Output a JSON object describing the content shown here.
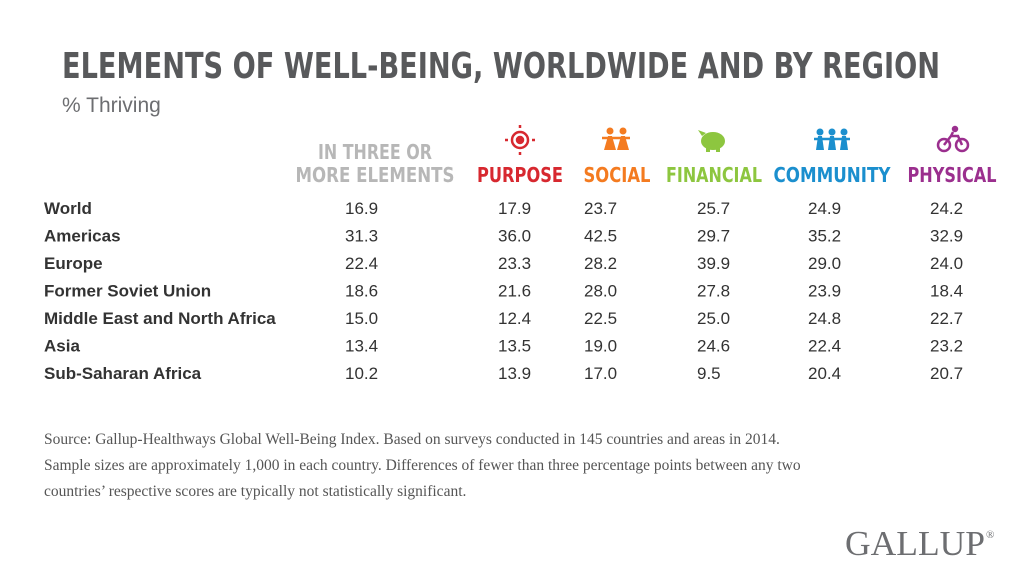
{
  "header": {
    "title": "ELEMENTS OF WELL-BEING, WORLDWIDE AND BY REGION",
    "subtitle": "% Thriving"
  },
  "table": {
    "columns": [
      {
        "lines": [
          "IN THREE OR",
          "MORE ELEMENTS"
        ],
        "color": "#b7b7b7"
      },
      {
        "lines": [
          "PURPOSE"
        ],
        "color": "#d7282f"
      },
      {
        "lines": [
          "SOCIAL"
        ],
        "color": "#f47b20"
      },
      {
        "lines": [
          "FINANCIAL"
        ],
        "color": "#8dc63f"
      },
      {
        "lines": [
          "COMMUNITY"
        ],
        "color": "#1b8fce"
      },
      {
        "lines": [
          "PHYSICAL"
        ],
        "color": "#9b2f8e"
      }
    ],
    "rows": [
      {
        "label": "World",
        "cells": [
          "16.9",
          "17.9",
          "23.7",
          "25.7",
          "24.9",
          "24.2"
        ]
      },
      {
        "label": "Americas",
        "cells": [
          "31.3",
          "36.0",
          "42.5",
          "29.7",
          "35.2",
          "32.9"
        ]
      },
      {
        "label": "Europe",
        "cells": [
          "22.4",
          "23.3",
          "28.2",
          "39.9",
          "29.0",
          "24.0"
        ]
      },
      {
        "label": "Former Soviet Union",
        "cells": [
          "18.6",
          "21.6",
          "28.0",
          "27.8",
          "23.9",
          "18.4"
        ]
      },
      {
        "label": "Middle East and North Africa",
        "cells": [
          "15.0",
          "12.4",
          "22.5",
          "25.0",
          "24.8",
          "22.7"
        ]
      },
      {
        "label": "Asia",
        "cells": [
          "13.4",
          "13.5",
          "19.0",
          "24.6",
          "22.4",
          "23.2"
        ]
      },
      {
        "label": "Sub-Saharan Africa",
        "cells": [
          "10.2",
          "13.9",
          "17.0",
          "9.5",
          "20.4",
          "20.7"
        ]
      }
    ]
  },
  "source": {
    "lines": [
      "Source: Gallup-Healthways Global Well-Being Index. Based on surveys conducted in 145 countries and areas in 2014.",
      "Sample sizes are approximately 1,000 in each country. Differences of fewer than three percentage points between any two",
      "countries’ respective scores are typically not statistically significant."
    ]
  },
  "logo": {
    "name": "GALLUP",
    "mark": "®"
  }
}
